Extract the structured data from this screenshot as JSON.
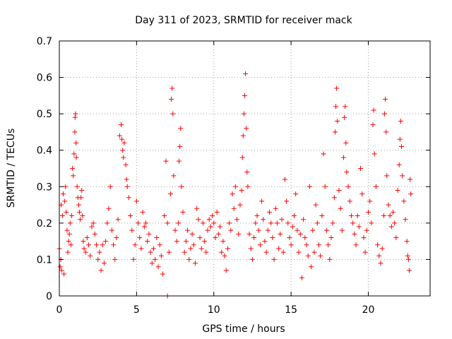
{
  "chart_data": {
    "type": "scatter",
    "title": "Day 311 of 2023, SRMTID for receiver mack",
    "xlabel": "GPS time / hours",
    "ylabel": "SRMTID / TECUs",
    "xlim": [
      0,
      24
    ],
    "ylim": [
      0,
      0.7
    ],
    "xticks": [
      0,
      5,
      10,
      15,
      20
    ],
    "yticks": [
      0,
      0.1,
      0.2,
      0.3,
      0.4,
      0.5,
      0.6,
      0.7
    ],
    "xtick_labels": [
      "0",
      "5",
      "10",
      "15",
      "20"
    ],
    "ytick_labels": [
      "0",
      "0.1",
      "0.2",
      "0.3",
      "0.4",
      "0.5",
      "0.6",
      "0.7"
    ],
    "grid": true,
    "marker": "+",
    "color": "#ff0000",
    "series": [
      {
        "name": "SRMTID",
        "points": [
          [
            0.0,
            0.13
          ],
          [
            0.05,
            0.08
          ],
          [
            0.1,
            0.1
          ],
          [
            0.12,
            0.25
          ],
          [
            0.15,
            0.07
          ],
          [
            0.2,
            0.22
          ],
          [
            0.25,
            0.28
          ],
          [
            0.3,
            0.06
          ],
          [
            0.35,
            0.26
          ],
          [
            0.4,
            0.3
          ],
          [
            0.45,
            0.23
          ],
          [
            0.5,
            0.18
          ],
          [
            0.55,
            0.12
          ],
          [
            0.6,
            0.15
          ],
          [
            0.65,
            0.17
          ],
          [
            0.7,
            0.2
          ],
          [
            0.75,
            0.14
          ],
          [
            0.8,
            0.22
          ],
          [
            0.85,
            0.35
          ],
          [
            0.9,
            0.33
          ],
          [
            0.95,
            0.39
          ],
          [
            1.0,
            0.45
          ],
          [
            1.02,
            0.49
          ],
          [
            1.05,
            0.5
          ],
          [
            1.08,
            0.42
          ],
          [
            1.1,
            0.38
          ],
          [
            1.15,
            0.3
          ],
          [
            1.2,
            0.27
          ],
          [
            1.25,
            0.25
          ],
          [
            1.3,
            0.23
          ],
          [
            1.35,
            0.21
          ],
          [
            1.4,
            0.27
          ],
          [
            1.45,
            0.29
          ],
          [
            1.5,
            0.22
          ],
          [
            1.55,
            0.15
          ],
          [
            1.6,
            0.13
          ],
          [
            1.7,
            0.12
          ],
          [
            1.8,
            0.16
          ],
          [
            1.9,
            0.14
          ],
          [
            2.0,
            0.11
          ],
          [
            2.1,
            0.19
          ],
          [
            2.2,
            0.2
          ],
          [
            2.3,
            0.17
          ],
          [
            2.4,
            0.14
          ],
          [
            2.5,
            0.1
          ],
          [
            2.6,
            0.12
          ],
          [
            2.7,
            0.07
          ],
          [
            2.8,
            0.14
          ],
          [
            2.9,
            0.09
          ],
          [
            3.0,
            0.15
          ],
          [
            3.1,
            0.2
          ],
          [
            3.2,
            0.24
          ],
          [
            3.3,
            0.3
          ],
          [
            3.4,
            0.18
          ],
          [
            3.5,
            0.14
          ],
          [
            3.6,
            0.1
          ],
          [
            3.7,
            0.16
          ],
          [
            3.8,
            0.21
          ],
          [
            3.9,
            0.44
          ],
          [
            4.0,
            0.47
          ],
          [
            4.05,
            0.43
          ],
          [
            4.1,
            0.4
          ],
          [
            4.15,
            0.38
          ],
          [
            4.2,
            0.42
          ],
          [
            4.3,
            0.36
          ],
          [
            4.35,
            0.32
          ],
          [
            4.4,
            0.3
          ],
          [
            4.5,
            0.27
          ],
          [
            4.6,
            0.22
          ],
          [
            4.7,
            0.18
          ],
          [
            4.8,
            0.1
          ],
          [
            4.9,
            0.14
          ],
          [
            5.0,
            0.26
          ],
          [
            5.1,
            0.2
          ],
          [
            5.2,
            0.16
          ],
          [
            5.3,
            0.13
          ],
          [
            5.4,
            0.23
          ],
          [
            5.5,
            0.19
          ],
          [
            5.6,
            0.2
          ],
          [
            5.7,
            0.15
          ],
          [
            5.8,
            0.17
          ],
          [
            5.9,
            0.12
          ],
          [
            6.0,
            0.09
          ],
          [
            6.1,
            0.13
          ],
          [
            6.2,
            0.1
          ],
          [
            6.3,
            0.16
          ],
          [
            6.4,
            0.08
          ],
          [
            6.5,
            0.14
          ],
          [
            6.6,
            0.11
          ],
          [
            6.7,
            0.06
          ],
          [
            6.8,
            0.22
          ],
          [
            6.9,
            0.37
          ],
          [
            7.0,
            0.2
          ],
          [
            7.1,
            0.12
          ],
          [
            7.2,
            0.28
          ],
          [
            7.25,
            0.54
          ],
          [
            7.3,
            0.57
          ],
          [
            7.35,
            0.5
          ],
          [
            7.4,
            0.33
          ],
          [
            7.5,
            0.18
          ],
          [
            7.6,
            0.15
          ],
          [
            7.7,
            0.2
          ],
          [
            7.75,
            0.37
          ],
          [
            7.8,
            0.41
          ],
          [
            7.85,
            0.46
          ],
          [
            7.9,
            0.3
          ],
          [
            8.0,
            0.23
          ],
          [
            8.1,
            0.12
          ],
          [
            8.2,
            0.15
          ],
          [
            8.3,
            0.18
          ],
          [
            8.4,
            0.1
          ],
          [
            8.5,
            0.13
          ],
          [
            8.6,
            0.17
          ],
          [
            8.7,
            0.14
          ],
          [
            8.8,
            0.09
          ],
          [
            8.9,
            0.24
          ],
          [
            9.0,
            0.21
          ],
          [
            9.1,
            0.16
          ],
          [
            9.2,
            0.13
          ],
          [
            9.3,
            0.2
          ],
          [
            9.4,
            0.15
          ],
          [
            9.5,
            0.12
          ],
          [
            9.6,
            0.18
          ],
          [
            9.7,
            0.21
          ],
          [
            9.8,
            0.19
          ],
          [
            9.9,
            0.22
          ],
          [
            10.0,
            0.2
          ],
          [
            10.1,
            0.16
          ],
          [
            10.2,
            0.23
          ],
          [
            10.3,
            0.17
          ],
          [
            10.4,
            0.19
          ],
          [
            10.5,
            0.12
          ],
          [
            10.6,
            0.15
          ],
          [
            10.7,
            0.11
          ],
          [
            10.8,
            0.07
          ],
          [
            10.9,
            0.13
          ],
          [
            11.0,
            0.2
          ],
          [
            11.1,
            0.18
          ],
          [
            11.2,
            0.28
          ],
          [
            11.3,
            0.24
          ],
          [
            11.4,
            0.3
          ],
          [
            11.5,
            0.21
          ],
          [
            11.6,
            0.17
          ],
          [
            11.7,
            0.25
          ],
          [
            11.8,
            0.29
          ],
          [
            11.85,
            0.38
          ],
          [
            11.9,
            0.44
          ],
          [
            11.95,
            0.5
          ],
          [
            12.0,
            0.55
          ],
          [
            12.05,
            0.61
          ],
          [
            12.1,
            0.46
          ],
          [
            12.15,
            0.34
          ],
          [
            12.2,
            0.3
          ],
          [
            12.3,
            0.17
          ],
          [
            12.4,
            0.13
          ],
          [
            12.5,
            0.1
          ],
          [
            12.6,
            0.16
          ],
          [
            12.7,
            0.2
          ],
          [
            12.8,
            0.22
          ],
          [
            12.9,
            0.18
          ],
          [
            13.0,
            0.14
          ],
          [
            13.1,
            0.26
          ],
          [
            13.2,
            0.21
          ],
          [
            13.3,
            0.15
          ],
          [
            13.4,
            0.12
          ],
          [
            13.5,
            0.18
          ],
          [
            13.6,
            0.23
          ],
          [
            13.7,
            0.2
          ],
          [
            13.8,
            0.16
          ],
          [
            13.9,
            0.1
          ],
          [
            14.0,
            0.24
          ],
          [
            14.1,
            0.2
          ],
          [
            14.2,
            0.13
          ],
          [
            14.3,
            0.17
          ],
          [
            14.4,
            0.21
          ],
          [
            14.5,
            0.12
          ],
          [
            14.6,
            0.32
          ],
          [
            14.7,
            0.26
          ],
          [
            14.8,
            0.2
          ],
          [
            14.9,
            0.16
          ],
          [
            15.0,
            0.14
          ],
          [
            15.1,
            0.19
          ],
          [
            15.2,
            0.22
          ],
          [
            15.3,
            0.28
          ],
          [
            15.4,
            0.18
          ],
          [
            15.5,
            0.12
          ],
          [
            15.6,
            0.17
          ],
          [
            15.7,
            0.05
          ],
          [
            15.8,
            0.21
          ],
          [
            15.9,
            0.16
          ],
          [
            16.0,
            0.14
          ],
          [
            16.1,
            0.11
          ],
          [
            16.2,
            0.3
          ],
          [
            16.3,
            0.08
          ],
          [
            16.4,
            0.18
          ],
          [
            16.5,
            0.12
          ],
          [
            16.6,
            0.25
          ],
          [
            16.7,
            0.2
          ],
          [
            16.8,
            0.14
          ],
          [
            16.9,
            0.11
          ],
          [
            17.0,
            0.22
          ],
          [
            17.1,
            0.39
          ],
          [
            17.2,
            0.3
          ],
          [
            17.3,
            0.18
          ],
          [
            17.4,
            0.14
          ],
          [
            17.5,
            0.1
          ],
          [
            17.6,
            0.16
          ],
          [
            17.7,
            0.2
          ],
          [
            17.8,
            0.27
          ],
          [
            17.85,
            0.45
          ],
          [
            17.9,
            0.52
          ],
          [
            17.95,
            0.57
          ],
          [
            18.0,
            0.48
          ],
          [
            18.1,
            0.29
          ],
          [
            18.2,
            0.24
          ],
          [
            18.3,
            0.18
          ],
          [
            18.4,
            0.38
          ],
          [
            18.45,
            0.49
          ],
          [
            18.5,
            0.52
          ],
          [
            18.55,
            0.42
          ],
          [
            18.6,
            0.34
          ],
          [
            18.7,
            0.3
          ],
          [
            18.8,
            0.26
          ],
          [
            18.9,
            0.22
          ],
          [
            19.0,
            0.2
          ],
          [
            19.1,
            0.17
          ],
          [
            19.2,
            0.14
          ],
          [
            19.3,
            0.22
          ],
          [
            19.4,
            0.19
          ],
          [
            19.5,
            0.35
          ],
          [
            19.6,
            0.28
          ],
          [
            19.7,
            0.16
          ],
          [
            19.8,
            0.12
          ],
          [
            19.9,
            0.18
          ],
          [
            20.0,
            0.23
          ],
          [
            20.1,
            0.26
          ],
          [
            20.2,
            0.2
          ],
          [
            20.3,
            0.47
          ],
          [
            20.35,
            0.51
          ],
          [
            20.4,
            0.39
          ],
          [
            20.5,
            0.3
          ],
          [
            20.6,
            0.14
          ],
          [
            20.7,
            0.11
          ],
          [
            20.8,
            0.09
          ],
          [
            20.9,
            0.13
          ],
          [
            21.0,
            0.22
          ],
          [
            21.05,
            0.5
          ],
          [
            21.1,
            0.54
          ],
          [
            21.15,
            0.45
          ],
          [
            21.2,
            0.33
          ],
          [
            21.3,
            0.25
          ],
          [
            21.4,
            0.22
          ],
          [
            21.5,
            0.19
          ],
          [
            21.6,
            0.23
          ],
          [
            21.7,
            0.2
          ],
          [
            21.8,
            0.16
          ],
          [
            21.9,
            0.29
          ],
          [
            22.0,
            0.36
          ],
          [
            22.05,
            0.43
          ],
          [
            22.1,
            0.48
          ],
          [
            22.15,
            0.41
          ],
          [
            22.2,
            0.33
          ],
          [
            22.3,
            0.26
          ],
          [
            22.4,
            0.21
          ],
          [
            22.5,
            0.15
          ],
          [
            22.55,
            0.11
          ],
          [
            22.6,
            0.1
          ],
          [
            22.65,
            0.07
          ],
          [
            22.7,
            0.32
          ],
          [
            22.75,
            0.28
          ],
          [
            7.0,
            0.0
          ]
        ]
      }
    ]
  }
}
